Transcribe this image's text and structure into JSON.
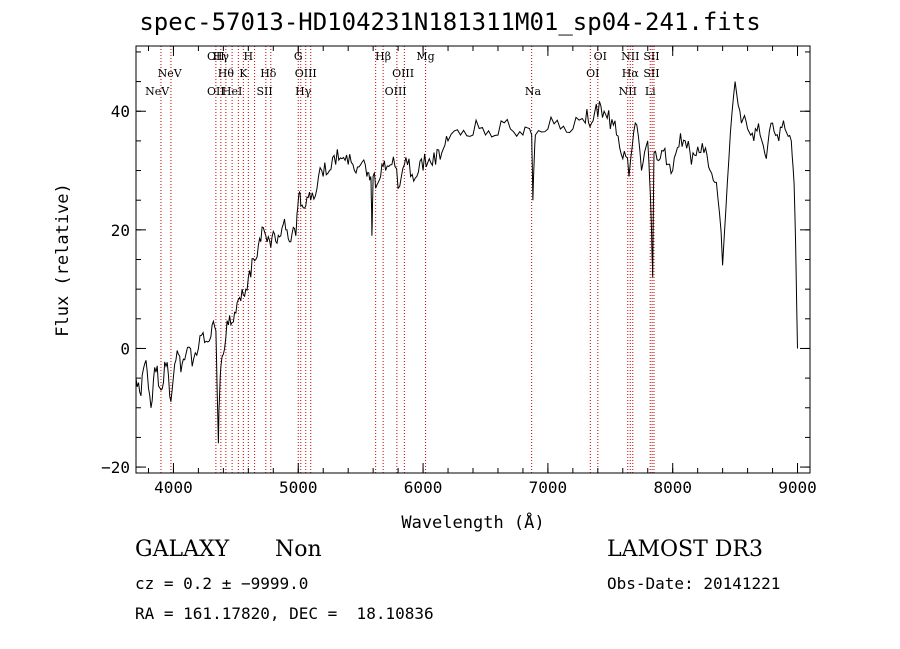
{
  "chart_data": {
    "type": "line",
    "title": "spec-57013-HD104231N181311M01_sp04-241.fits",
    "xlabel": "Wavelength (Å)",
    "ylabel": "Flux (relative)",
    "xlim": [
      3700,
      9100
    ],
    "ylim": [
      -21,
      51
    ],
    "xticks": [
      "4000",
      "5000",
      "6000",
      "7000",
      "8000",
      "9000"
    ],
    "yticks": [
      "−20",
      "0",
      "20",
      "40"
    ],
    "series": [
      {
        "x": [
          3700,
          3740,
          3780,
          3820,
          3860,
          3900,
          3940,
          3980,
          4020,
          4060,
          4100,
          4150,
          4200,
          4250,
          4300,
          4340,
          4360,
          4380,
          4420,
          4460,
          4500,
          4540,
          4580,
          4620,
          4660,
          4700,
          4740,
          4780,
          4820,
          4860,
          4900,
          4940,
          4980,
          5000,
          5020,
          5060,
          5100,
          5150,
          5200,
          5250,
          5300,
          5350,
          5400,
          5450,
          5500,
          5550,
          5580,
          5590,
          5600,
          5620,
          5660,
          5700,
          5750,
          5800,
          5850,
          5900,
          5950,
          6000,
          6050,
          6100,
          6150,
          6200,
          6300,
          6400,
          6500,
          6600,
          6700,
          6800,
          6870,
          6880,
          6900,
          7000,
          7100,
          7200,
          7300,
          7350,
          7400,
          7450,
          7500,
          7550,
          7600,
          7650,
          7700,
          7750,
          7800,
          7830,
          7840,
          7850,
          7900,
          7950,
          8000,
          8050,
          8100,
          8150,
          8200,
          8250,
          8300,
          8350,
          8400,
          8450,
          8500,
          8550,
          8600,
          8650,
          8700,
          8750,
          8800,
          8850,
          8900,
          8950,
          8980,
          9000
        ],
        "y": [
          -5,
          -8,
          -2,
          -10,
          -4,
          -7,
          -3,
          -9,
          -2,
          -4,
          -1,
          -3,
          0,
          1,
          2,
          3,
          -16,
          -3,
          2,
          4,
          6,
          8,
          10,
          12,
          15,
          18,
          19,
          17,
          18,
          19,
          20,
          18,
          19,
          25,
          24,
          24,
          25,
          27,
          29,
          30,
          31,
          32,
          31,
          30,
          31,
          29,
          29,
          19,
          29,
          27,
          29,
          30,
          31,
          27,
          31,
          29,
          29,
          30,
          32,
          31,
          33,
          35,
          36,
          36,
          36,
          36,
          37,
          36,
          36,
          25,
          36,
          37,
          37,
          37,
          38,
          38,
          39,
          40,
          37,
          36,
          32,
          29,
          38,
          30,
          35,
          20,
          12,
          33,
          32,
          31,
          30,
          34,
          35,
          31,
          34,
          33,
          30,
          28,
          14,
          32,
          45,
          38,
          37,
          35,
          36,
          32,
          38,
          35,
          37,
          35,
          22,
          0
        ]
      }
    ],
    "lines": [
      {
        "label": "NeV",
        "row": 2,
        "x": 3870
      },
      {
        "label": "NeV",
        "row": 1,
        "x": 3970
      },
      {
        "label": "OII",
        "row": 0,
        "x": 4340
      },
      {
        "label": "Hγ",
        "row": 0,
        "x": 4380
      },
      {
        "label": "H",
        "row": 0,
        "x": 4600
      },
      {
        "label": "Hθ",
        "row": 1,
        "x": 4420
      },
      {
        "label": "K",
        "row": 1,
        "x": 4560
      },
      {
        "label": "Hδ",
        "row": 1,
        "x": 4760
      },
      {
        "label": "OII",
        "row": 2,
        "x": 4340
      },
      {
        "label": "HeI",
        "row": 2,
        "x": 4470
      },
      {
        "label": "SII",
        "row": 2,
        "x": 4730
      },
      {
        "label": "G",
        "row": 0,
        "x": 5000
      },
      {
        "label": "OIII",
        "row": 1,
        "x": 5060
      },
      {
        "label": "Hγ",
        "row": 2,
        "x": 5040
      },
      {
        "label": "Hβ",
        "row": 0,
        "x": 5680
      },
      {
        "label": "OIII",
        "row": 1,
        "x": 5840
      },
      {
        "label": "OIII",
        "row": 2,
        "x": 5780
      },
      {
        "label": "Mg",
        "row": 0,
        "x": 6020
      },
      {
        "label": "Na",
        "row": 2,
        "x": 6880
      },
      {
        "label": "OI",
        "row": 0,
        "x": 7420
      },
      {
        "label": "OI",
        "row": 1,
        "x": 7360
      },
      {
        "label": "NII",
        "row": 0,
        "x": 7660
      },
      {
        "label": "Hα",
        "row": 1,
        "x": 7660
      },
      {
        "label": "NII",
        "row": 2,
        "x": 7640
      },
      {
        "label": "SII",
        "row": 0,
        "x": 7830
      },
      {
        "label": "SII",
        "row": 1,
        "x": 7830
      },
      {
        "label": "Li",
        "row": 2,
        "x": 7820
      }
    ],
    "marker_lines_x": [
      3900,
      3980,
      4340,
      4380,
      4420,
      4470,
      4520,
      4560,
      4600,
      4650,
      4740,
      4780,
      5000,
      5020,
      5060,
      5100,
      5620,
      5680,
      5790,
      5850,
      6020,
      6870,
      7340,
      7400,
      7640,
      7660,
      7680,
      7820,
      7835,
      7850
    ],
    "grid": false,
    "colors": {
      "line": "#000000",
      "markers": "#cc0000"
    }
  },
  "info": {
    "object_type": "GALAXY",
    "subclass": "Non",
    "survey": "LAMOST DR3",
    "cz": "cz = 0.2 ± −9999.0",
    "obs_date": "Obs-Date: 20141221",
    "coords": "RA = 161.17820, DEC =  18.10836"
  }
}
